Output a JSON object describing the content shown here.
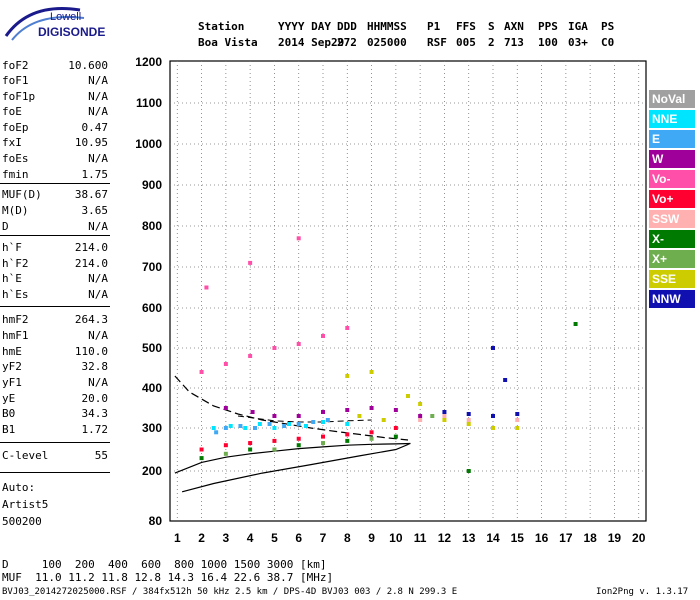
{
  "logo": {
    "line1": "Lowell",
    "line2": "DIGISONDE"
  },
  "header": {
    "labels": [
      "Station",
      "YYYY DAY",
      "DDD",
      "HHMMSS",
      "P1",
      "FFS",
      "S",
      "AXN",
      "PPS",
      "IGA",
      "PS"
    ],
    "values": [
      "Boa Vista",
      "2014 Sep29",
      "272",
      "025000",
      "RSF",
      "005",
      "2",
      "713",
      "100",
      "03+",
      "C0"
    ]
  },
  "params": [
    {
      "name": "foF2",
      "value": "10.600"
    },
    {
      "name": "foF1",
      "value": "N/A"
    },
    {
      "name": "foF1p",
      "value": "N/A"
    },
    {
      "name": "foE",
      "value": "N/A"
    },
    {
      "name": "foEp",
      "value": "0.47"
    },
    {
      "name": "fxI",
      "value": "10.95"
    },
    {
      "name": "foEs",
      "value": "N/A"
    },
    {
      "name": "fmin",
      "value": "1.75"
    },
    {
      "name": "MUF(D)",
      "value": "38.67"
    },
    {
      "name": "M(D)",
      "value": "3.65"
    },
    {
      "name": "D",
      "value": "N/A"
    },
    {
      "name": "h`F",
      "value": "214.0"
    },
    {
      "name": "h`F2",
      "value": "214.0"
    },
    {
      "name": "h`E",
      "value": "N/A"
    },
    {
      "name": "h`Es",
      "value": "N/A"
    },
    {
      "name": "hmF2",
      "value": "264.3"
    },
    {
      "name": "hmF1",
      "value": "N/A"
    },
    {
      "name": "hmE",
      "value": "110.0"
    },
    {
      "name": "yF2",
      "value": "32.8"
    },
    {
      "name": "yF1",
      "value": "N/A"
    },
    {
      "name": "yE",
      "value": "20.0"
    },
    {
      "name": "B0",
      "value": "34.3"
    },
    {
      "name": "B1",
      "value": "1.72"
    },
    {
      "name": "C-level",
      "value": "55"
    }
  ],
  "auto": {
    "line1": "Auto:",
    "line2": "Artist5",
    "line3": "500200"
  },
  "legend": [
    {
      "label": "NoVal",
      "color": "#a0a0a0"
    },
    {
      "label": "NNE",
      "color": "#00e5ff"
    },
    {
      "label": "E",
      "color": "#3fa9f5"
    },
    {
      "label": "W",
      "color": "#a0009a"
    },
    {
      "label": "Vo-",
      "color": "#ff4fa8"
    },
    {
      "label": "Vo+",
      "color": "#ff0030"
    },
    {
      "label": "SSW",
      "color": "#ffb0b0"
    },
    {
      "label": "X-",
      "color": "#007a00"
    },
    {
      "label": "X+",
      "color": "#6fae4f"
    },
    {
      "label": "SSE",
      "color": "#cccc00"
    },
    {
      "label": "NNW",
      "color": "#1010b0"
    }
  ],
  "footer": {
    "d_row": "D     100  200  400  600  800 1000 1500 3000 [km]",
    "muf_row": "MUF  11.0 11.2 11.8 12.8 14.3 16.4 22.6 38.7 [MHz]",
    "file_info": "BVJ03_2014272025000.RSF / 384fx512h 50 kHz 2.5 km / DPS-4D BVJ03 003 / 2.8 N 299.3 E",
    "version": "Ion2Png v. 1.3.17"
  },
  "chart_data": {
    "type": "scatter",
    "xlabel": "",
    "ylabel": "",
    "xlim": [
      1,
      20
    ],
    "ylim": [
      80,
      1200
    ],
    "x_ticks": [
      1,
      2,
      3,
      4,
      5,
      6,
      7,
      8,
      9,
      10,
      11,
      12,
      13,
      14,
      15,
      16,
      17,
      18,
      19,
      20
    ],
    "x_tick_labels": [
      "1",
      "2",
      "3",
      "4",
      "5",
      "6",
      "7",
      "8",
      "9",
      "10",
      "11",
      "12",
      "13",
      "14",
      "15",
      "16",
      "17",
      "18",
      "19",
      "20"
    ],
    "y_ticks": [
      80,
      200,
      300,
      400,
      500,
      600,
      700,
      800,
      900,
      1000,
      1100,
      1200
    ],
    "y_tick_labels": [
      "80",
      "200",
      "300",
      "400",
      "500",
      "600",
      "700",
      "800",
      "900",
      "1000",
      "1100",
      "1200"
    ],
    "grid": true,
    "legend_position": "right",
    "series": [
      {
        "name": "NNE",
        "color": "#00e5ff",
        "points": [
          [
            2.5,
            300
          ],
          [
            3.2,
            305
          ],
          [
            3.8,
            300
          ],
          [
            4.4,
            310
          ],
          [
            5.0,
            300
          ],
          [
            5.6,
            310
          ],
          [
            6.3,
            305
          ],
          [
            7.0,
            315
          ],
          [
            8.0,
            310
          ]
        ]
      },
      {
        "name": "E",
        "color": "#3fa9f5",
        "points": [
          [
            2.6,
            290
          ],
          [
            3.0,
            300
          ],
          [
            3.6,
            305
          ],
          [
            4.2,
            300
          ],
          [
            4.8,
            310
          ],
          [
            5.4,
            305
          ],
          [
            6.0,
            310
          ],
          [
            6.6,
            315
          ],
          [
            7.2,
            320
          ]
        ]
      },
      {
        "name": "W",
        "color": "#a0009a",
        "points": [
          [
            3.0,
            350
          ],
          [
            4.1,
            340
          ],
          [
            5.0,
            330
          ],
          [
            6.0,
            330
          ],
          [
            7.0,
            340
          ],
          [
            8.0,
            345
          ],
          [
            9.0,
            350
          ],
          [
            10.0,
            345
          ],
          [
            11.0,
            330
          ]
        ]
      },
      {
        "name": "Vo-",
        "color": "#ff4fa8",
        "points": [
          [
            2.0,
            440
          ],
          [
            3.0,
            460
          ],
          [
            4.0,
            480
          ],
          [
            5.0,
            500
          ],
          [
            6.0,
            510
          ],
          [
            7.0,
            530
          ],
          [
            8.0,
            550
          ],
          [
            2.2,
            650
          ],
          [
            4.0,
            710
          ],
          [
            6.0,
            770
          ]
        ]
      },
      {
        "name": "Vo+",
        "color": "#ff0030",
        "points": [
          [
            2.0,
            250
          ],
          [
            3.0,
            260
          ],
          [
            4.0,
            265
          ],
          [
            5.0,
            270
          ],
          [
            6.0,
            275
          ],
          [
            7.0,
            280
          ],
          [
            8.0,
            285
          ],
          [
            9.0,
            290
          ],
          [
            10.0,
            300
          ]
        ]
      },
      {
        "name": "SSW",
        "color": "#ffb0b0",
        "points": [
          [
            11.0,
            320
          ],
          [
            12.0,
            330
          ],
          [
            13.0,
            320
          ],
          [
            14.0,
            330
          ],
          [
            15.0,
            320
          ]
        ]
      },
      {
        "name": "X-",
        "color": "#007a00",
        "points": [
          [
            2.0,
            230
          ],
          [
            4.0,
            250
          ],
          [
            6.0,
            260
          ],
          [
            8.0,
            270
          ],
          [
            10.0,
            280
          ],
          [
            13.0,
            200
          ],
          [
            17.4,
            560
          ]
        ]
      },
      {
        "name": "X+",
        "color": "#6fae4f",
        "points": [
          [
            3.0,
            240
          ],
          [
            5.0,
            250
          ],
          [
            7.0,
            265
          ],
          [
            9.0,
            275
          ],
          [
            11.5,
            330
          ]
        ]
      },
      {
        "name": "SSE",
        "color": "#cccc00",
        "points": [
          [
            8.0,
            430
          ],
          [
            9.0,
            440
          ],
          [
            10.5,
            380
          ],
          [
            11.0,
            360
          ],
          [
            12.0,
            320
          ],
          [
            13.0,
            310
          ],
          [
            14.0,
            300
          ],
          [
            15.0,
            300
          ],
          [
            8.5,
            330
          ],
          [
            9.5,
            320
          ]
        ]
      },
      {
        "name": "NNW",
        "color": "#1010b0",
        "points": [
          [
            12.0,
            340
          ],
          [
            13.0,
            335
          ],
          [
            14.0,
            330
          ],
          [
            15.0,
            335
          ],
          [
            14.5,
            420
          ],
          [
            14.0,
            500
          ]
        ]
      }
    ],
    "profile_curves": {
      "solid": [
        [
          0.9,
          195
        ],
        [
          2,
          220
        ],
        [
          3,
          232
        ],
        [
          4,
          240
        ],
        [
          5,
          246
        ],
        [
          6,
          252
        ],
        [
          7,
          256
        ],
        [
          8,
          260
        ],
        [
          9,
          262
        ],
        [
          10,
          263
        ],
        [
          10.6,
          264
        ],
        [
          10.0,
          250
        ],
        [
          8.5,
          235
        ],
        [
          6.5,
          215
        ],
        [
          4.5,
          195
        ],
        [
          2.5,
          170
        ],
        [
          1.2,
          150
        ]
      ],
      "dashed": [
        [
          0.9,
          430
        ],
        [
          1.5,
          390
        ],
        [
          2.5,
          355
        ],
        [
          3.5,
          335
        ],
        [
          4.5,
          320
        ],
        [
          5.5,
          310
        ],
        [
          6.5,
          300
        ],
        [
          7.5,
          292
        ],
        [
          8.5,
          285
        ],
        [
          9.5,
          278
        ],
        [
          10.5,
          272
        ]
      ],
      "dashed_trace": [
        [
          3.5,
          330
        ],
        [
          5,
          318
        ],
        [
          6,
          315
        ],
        [
          7,
          315
        ],
        [
          8,
          318
        ],
        [
          9,
          320
        ]
      ]
    }
  }
}
